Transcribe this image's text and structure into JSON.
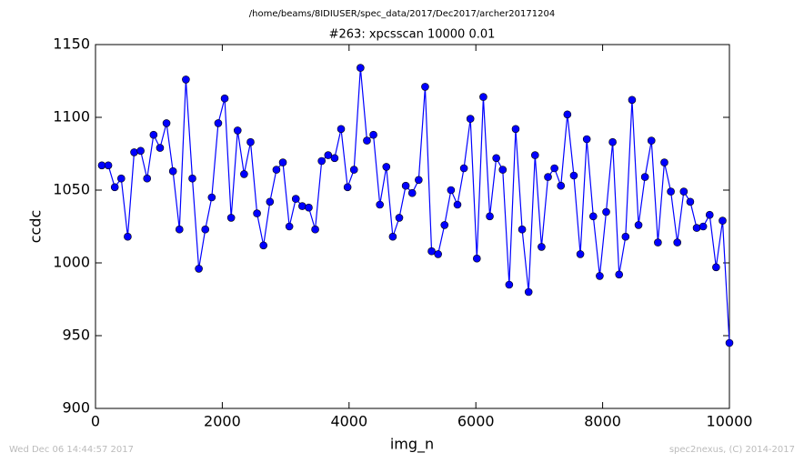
{
  "chart_data": {
    "type": "line",
    "title": "/home/beams/8IDIUSER/spec_data/2017/Dec2017/archer20171204",
    "subtitle": "#263: xpcsscan 10000 0.01",
    "xlabel": "img_n",
    "ylabel": "ccdc",
    "footer_left": "Wed Dec 06 14:44:57 2017",
    "footer_right": "spec2nexus, (C) 2014-2017",
    "x": [
      100,
      202,
      304,
      406,
      508,
      610,
      712,
      814,
      916,
      1018,
      1120,
      1222,
      1324,
      1426,
      1528,
      1630,
      1732,
      1834,
      1936,
      2038,
      2140,
      2242,
      2344,
      2446,
      2548,
      2650,
      2752,
      2854,
      2956,
      3058,
      3160,
      3262,
      3364,
      3466,
      3568,
      3670,
      3772,
      3874,
      3976,
      4078,
      4180,
      4282,
      4384,
      4486,
      4588,
      4690,
      4792,
      4894,
      4996,
      5098,
      5200,
      5302,
      5404,
      5506,
      5608,
      5710,
      5812,
      5914,
      6016,
      6118,
      6220,
      6322,
      6424,
      6526,
      6628,
      6730,
      6832,
      6934,
      7036,
      7138,
      7240,
      7342,
      7444,
      7546,
      7648,
      7750,
      7852,
      7954,
      8056,
      8158,
      8260,
      8362,
      8464,
      8566,
      8668,
      8770,
      8872,
      8974,
      9076,
      9178,
      9280,
      9382,
      9484,
      9586,
      9688,
      9790,
      9892,
      10000
    ],
    "series": [
      {
        "color": "#0000ff",
        "values": [
          1067,
          1067,
          1052,
          1058,
          1018,
          1076,
          1077,
          1058,
          1088,
          1079,
          1096,
          1063,
          1023,
          1126,
          1058,
          996,
          1023,
          1045,
          1096,
          1113,
          1031,
          1091,
          1061,
          1083,
          1034,
          1012,
          1042,
          1064,
          1069,
          1025,
          1044,
          1039,
          1038,
          1023,
          1070,
          1074,
          1072,
          1092,
          1052,
          1064,
          1134,
          1084,
          1088,
          1040,
          1066,
          1018,
          1031,
          1053,
          1048,
          1057,
          1121,
          1008,
          1006,
          1026,
          1050,
          1040,
          1065,
          1099,
          1003,
          1114,
          1032,
          1072,
          1064,
          985,
          1092,
          1023,
          980,
          1074,
          1011,
          1059,
          1065,
          1053,
          1102,
          1060,
          1006,
          1085,
          1032,
          991,
          1035,
          1083,
          992,
          1018,
          1112,
          1026,
          1059,
          1084,
          1014,
          1069,
          1049,
          1014,
          1049,
          1042,
          1024,
          1025,
          1033,
          997,
          1029,
          945
        ]
      }
    ],
    "xlim": [
      0,
      10000
    ],
    "xticks": [
      0,
      2000,
      4000,
      6000,
      8000,
      10000
    ],
    "ylim": [
      900,
      1150
    ],
    "yticks": [
      900,
      950,
      1000,
      1050,
      1100,
      1150
    ]
  }
}
